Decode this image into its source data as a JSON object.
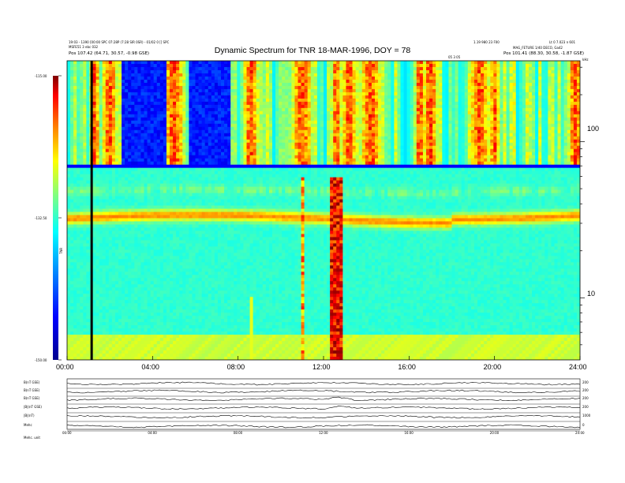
{
  "header": {
    "title": "Dynamic Spectrum for TNR 18-MAR-1996, DOY = 78",
    "left_line1": "19:03 - 1390 [00:00 SPC 07:28P (7:28 SIR 0SR) - 01/02 0 [[ SPC",
    "left_line2": "MSFE51 3 ebc 032",
    "left_line3": "Pos 107.42 (64.71, 30.57, -0.98 GSE)",
    "right_line1": "1.19 980 23 F00",
    "right_line2": "Lt 0 7.023 n 601",
    "right_line3": "MAG_FETURE 1/40 DECO, Ga42",
    "right_line4": "Pos 101.41 (88.30, 30.58, -1.87 GSE)",
    "mid_small": "05 3 05",
    "khz": "kHz"
  },
  "colorbar": {
    "label": "TNR",
    "ticks": [
      "-115.00",
      "-132.50",
      "-150.00"
    ]
  },
  "chart_data": {
    "type": "heatmap",
    "title": "Dynamic Spectrum for TNR 18-MAR-1996, DOY = 78",
    "x_tick_labels": [
      "00:00",
      "04:00",
      "08:00",
      "12:00",
      "16:00",
      "20:00",
      "24:00"
    ],
    "x_range_hours": [
      0,
      24
    ],
    "y_tick_labels": [
      "100",
      "10"
    ],
    "y_unit": "kHz",
    "y_scale": "log",
    "y_range_khz": [
      4,
      330
    ],
    "colorbar_range": [
      -150.0,
      -115.0
    ],
    "colorbar_label": "TNR",
    "colormap": [
      "#00008f",
      "#0000ff",
      "#0080ff",
      "#00ffff",
      "#80ff80",
      "#ffff00",
      "#ff8000",
      "#ff0000",
      "#7f0000"
    ],
    "features": {
      "data_gap_hour": 1.15,
      "cutoff_khz": 70,
      "plasma_line_khz": 32,
      "upper_band_khz": 48,
      "noise_floor_khz": 5,
      "bursts_hours": [
        1.3,
        2.0,
        5.0,
        6.3,
        8.6,
        11.0,
        12.6,
        13.2,
        14.2,
        16.5,
        17.0,
        19.3,
        20.0,
        23.8
      ]
    }
  },
  "bottom_panels": {
    "labels": [
      "B(nT GSE)",
      "B(nT GSE)",
      "B(nT GSE)",
      "|B|(nT GSE)",
      "|B|(nT)",
      "Mehc"
    ],
    "right_ticks": [
      "200",
      "200",
      "200",
      "200",
      "1000",
      "0"
    ],
    "x_tick_labels": [
      "00:00",
      "04:00",
      "08:00",
      "12:00",
      "16:00",
      "20:00",
      "24:00"
    ],
    "footer": "Mehc. unit"
  }
}
